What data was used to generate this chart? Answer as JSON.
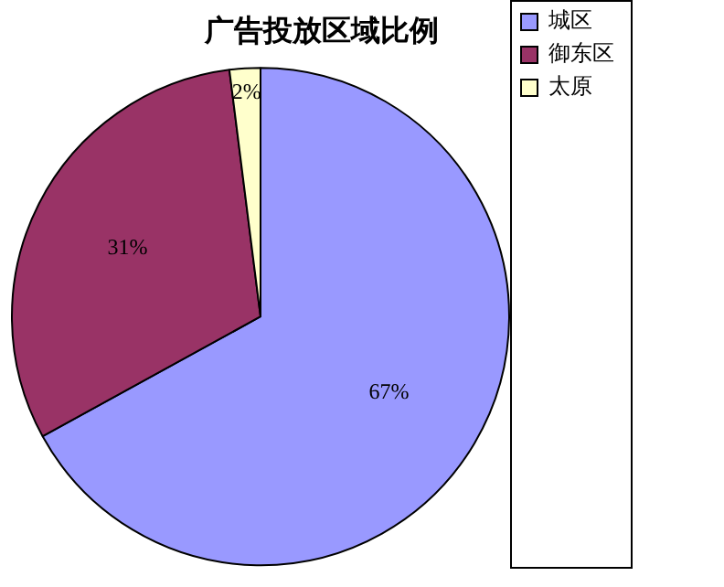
{
  "chart_data": {
    "type": "pie",
    "title": "广告投放区域比例",
    "categories": [
      "城区",
      "御东区",
      "太原"
    ],
    "values": [
      67,
      31,
      2
    ],
    "colors": [
      "#9999ff",
      "#993366",
      "#ffffcc"
    ],
    "value_labels": [
      "67%",
      "31%",
      "2%"
    ],
    "legend": "top right"
  }
}
